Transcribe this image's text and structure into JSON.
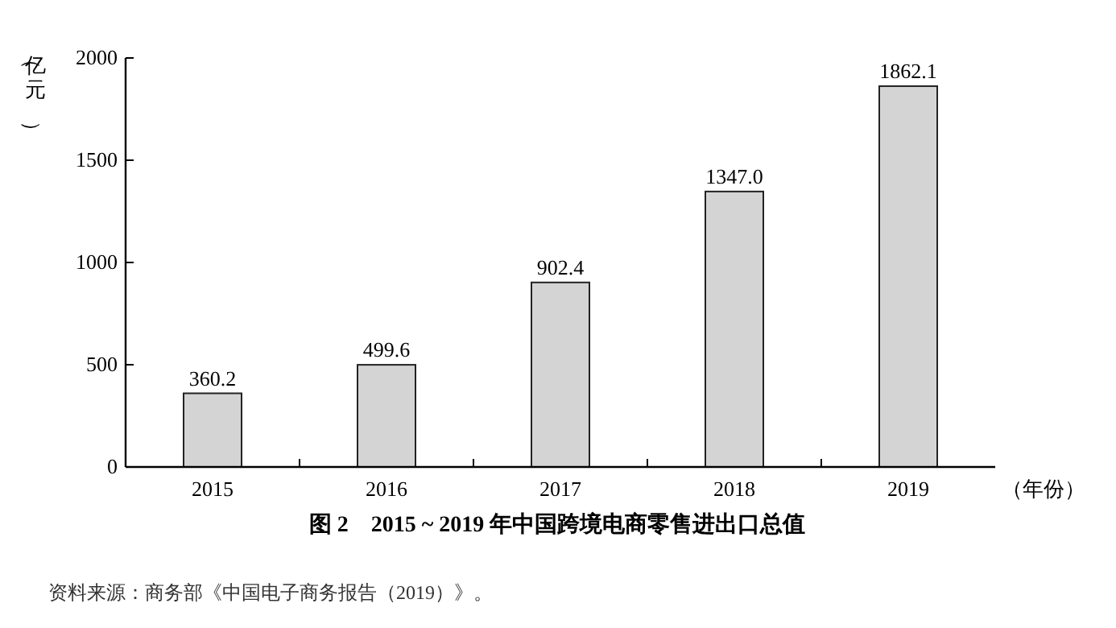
{
  "chart_data": {
    "type": "bar",
    "title": "图 2　2015 ~ 2019 年中国跨境电商零售进出口总值",
    "ylabel": "（亿元）",
    "xlabel": "（年份）",
    "categories": [
      "2015",
      "2016",
      "2017",
      "2018",
      "2019"
    ],
    "values": [
      360.2,
      499.6,
      902.4,
      1347.0,
      1862.1
    ],
    "value_labels": [
      "360.2",
      "499.6",
      "902.4",
      "1347.0",
      "1862.1"
    ],
    "color": "#d4d4d4",
    "ylim": [
      0,
      2000
    ],
    "yticks": [
      0,
      500,
      1000,
      1500,
      2000
    ],
    "annotations": [
      "资料来源：商务部《中国电子商务报告（2019）》。"
    ]
  }
}
